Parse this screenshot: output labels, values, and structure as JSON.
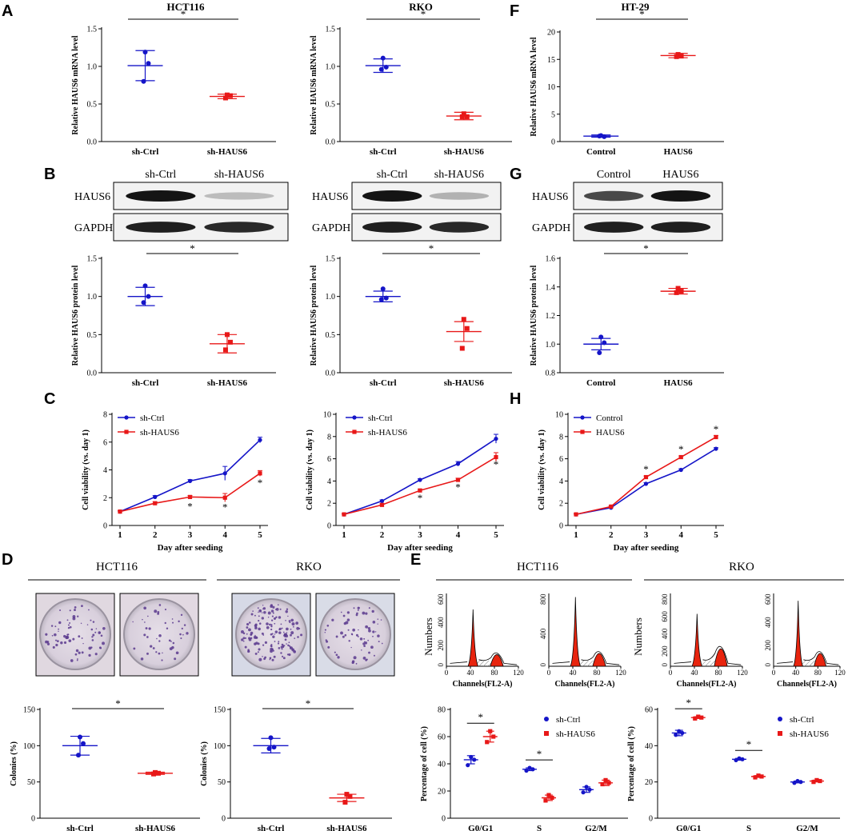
{
  "colors": {
    "blue": "#1515c8",
    "red": "#e81818",
    "black": "#000000"
  },
  "panel_letters": [
    "A",
    "B",
    "C",
    "D",
    "E",
    "F",
    "G",
    "H"
  ],
  "significance_mark": "*",
  "chart_data": [
    {
      "id": "A1",
      "type": "scatter",
      "title": "HCT116",
      "ylabel": "Relative HAUS6 mRNA level",
      "ylim": [
        0,
        1.5
      ],
      "yticks": [
        "0.0",
        "0.5",
        "1.0",
        "1.5"
      ],
      "categories": [
        "sh-Ctrl",
        "sh-HAUS6"
      ],
      "colors": [
        "blue",
        "red"
      ],
      "markers": [
        "circle",
        "square"
      ],
      "points": [
        [
          1.19,
          1.04,
          0.8
        ],
        [
          0.62,
          0.61,
          0.58
        ]
      ],
      "mean": [
        1.01,
        0.6
      ],
      "sd": [
        0.2,
        0.03
      ],
      "sig_label": "*"
    },
    {
      "id": "A2",
      "type": "scatter",
      "title": "RKO",
      "ylabel": "Relative HAUS6 mRNA level",
      "ylim": [
        0,
        1.5
      ],
      "yticks": [
        "0.0",
        "0.5",
        "1.0",
        "1.5"
      ],
      "categories": [
        "sh-Ctrl",
        "sh-HAUS6"
      ],
      "colors": [
        "blue",
        "red"
      ],
      "markers": [
        "circle",
        "square"
      ],
      "points": [
        [
          1.11,
          0.99,
          0.96
        ],
        [
          0.37,
          0.33,
          0.33
        ]
      ],
      "mean": [
        1.01,
        0.34
      ],
      "sd": [
        0.09,
        0.05
      ],
      "sig_label": "*"
    },
    {
      "id": "F",
      "type": "scatter",
      "title": "HT-29",
      "ylabel": "Relative HAUS6 mRNA level",
      "ylim": [
        0,
        20
      ],
      "yticks": [
        "0",
        "5",
        "10",
        "15",
        "20"
      ],
      "categories": [
        "Control",
        "HAUS6"
      ],
      "colors": [
        "blue",
        "red"
      ],
      "markers": [
        "circle",
        "square"
      ],
      "points": [
        [
          1.1,
          0.9,
          1.0
        ],
        [
          15.9,
          15.6,
          15.5
        ]
      ],
      "mean": [
        1.0,
        15.7
      ],
      "sd": [
        0.2,
        0.4
      ],
      "sig_label": "*"
    },
    {
      "id": "B1",
      "type": "scatter",
      "ylabel": "Relative HAUS6 protein level",
      "ylim": [
        0,
        1.5
      ],
      "yticks": [
        "0.0",
        "0.5",
        "1.0",
        "1.5"
      ],
      "categories": [
        "sh-Ctrl",
        "sh-HAUS6"
      ],
      "colors": [
        "blue",
        "red"
      ],
      "markers": [
        "circle",
        "square"
      ],
      "points": [
        [
          1.14,
          1.0,
          0.92
        ],
        [
          0.5,
          0.4,
          0.3
        ]
      ],
      "mean": [
        1.0,
        0.38
      ],
      "sd": [
        0.12,
        0.12
      ],
      "sig_label": "*"
    },
    {
      "id": "B2",
      "type": "scatter",
      "ylabel": "Relative HAUS6 protein level",
      "ylim": [
        0,
        1.5
      ],
      "yticks": [
        "0.0",
        "0.5",
        "1.0",
        "1.5"
      ],
      "categories": [
        "sh-Ctrl",
        "sh-HAUS6"
      ],
      "colors": [
        "blue",
        "red"
      ],
      "markers": [
        "circle",
        "square"
      ],
      "points": [
        [
          1.1,
          0.98,
          0.96
        ],
        [
          0.7,
          0.58,
          0.32
        ]
      ],
      "mean": [
        1.0,
        0.54
      ],
      "sd": [
        0.07,
        0.13
      ],
      "sig_label": "*"
    },
    {
      "id": "G",
      "type": "scatter",
      "ylabel": "Relative HAUS6 protein level",
      "ylim": [
        0.8,
        1.6
      ],
      "yticks": [
        "0.8",
        "1.0",
        "1.2",
        "1.4",
        "1.6"
      ],
      "categories": [
        "Control",
        "HAUS6"
      ],
      "colors": [
        "blue",
        "red"
      ],
      "markers": [
        "circle",
        "square"
      ],
      "points": [
        [
          1.05,
          1.01,
          0.94
        ],
        [
          1.39,
          1.37,
          1.36
        ]
      ],
      "mean": [
        1.0,
        1.37
      ],
      "sd": [
        0.04,
        0.02
      ],
      "sig_label": "*"
    },
    {
      "id": "C1",
      "type": "line",
      "xlabel": "Day after seeding",
      "ylabel": "Cell viability (vs. day 1)",
      "x": [
        1,
        2,
        3,
        4,
        5
      ],
      "ylim": [
        0,
        8
      ],
      "yticks": [
        "0",
        "2",
        "4",
        "6",
        "8"
      ],
      "xticks": [
        "1",
        "2",
        "3",
        "4",
        "5"
      ],
      "series": [
        {
          "name": "sh-Ctrl",
          "color": "blue",
          "marker": "circle",
          "values": [
            1.0,
            2.05,
            3.2,
            3.75,
            6.15
          ],
          "err": [
            0.05,
            0.1,
            0.1,
            0.5,
            0.2
          ]
        },
        {
          "name": "sh-HAUS6",
          "color": "red",
          "marker": "square",
          "values": [
            1.0,
            1.6,
            2.05,
            2.0,
            3.75
          ],
          "err": [
            0.05,
            0.1,
            0.1,
            0.3,
            0.2
          ]
        }
      ],
      "sig_days": [
        3,
        4,
        5
      ],
      "sig_label": "*"
    },
    {
      "id": "C2",
      "type": "line",
      "xlabel": "Day after seeding",
      "ylabel": "Cell viability (vs. day 1)",
      "x": [
        1,
        2,
        3,
        4,
        5
      ],
      "ylim": [
        0,
        10
      ],
      "yticks": [
        "0",
        "2",
        "4",
        "6",
        "8",
        "10"
      ],
      "xticks": [
        "1",
        "2",
        "3",
        "4",
        "5"
      ],
      "series": [
        {
          "name": "sh-Ctrl",
          "color": "blue",
          "marker": "circle",
          "values": [
            1.0,
            2.2,
            4.1,
            5.55,
            7.8
          ],
          "err": [
            0.05,
            0.1,
            0.1,
            0.2,
            0.4
          ]
        },
        {
          "name": "sh-HAUS6",
          "color": "red",
          "marker": "square",
          "values": [
            1.0,
            1.85,
            3.15,
            4.1,
            6.15
          ],
          "err": [
            0.05,
            0.1,
            0.1,
            0.15,
            0.4
          ]
        }
      ],
      "sig_days": [
        3,
        4,
        5
      ],
      "sig_label": "*"
    },
    {
      "id": "H",
      "type": "line",
      "xlabel": "Day after seeding",
      "ylabel": "Cell viability (vs. day 1)",
      "x": [
        1,
        2,
        3,
        4,
        5
      ],
      "ylim": [
        0,
        10
      ],
      "yticks": [
        "0",
        "2",
        "4",
        "6",
        "8",
        "10"
      ],
      "xticks": [
        "1",
        "2",
        "3",
        "4",
        "5"
      ],
      "series": [
        {
          "name": "Control",
          "color": "blue",
          "marker": "circle",
          "values": [
            1.0,
            1.6,
            3.75,
            5.0,
            6.9
          ],
          "err": [
            0.05,
            0.05,
            0.1,
            0.1,
            0.1
          ]
        },
        {
          "name": "HAUS6",
          "color": "red",
          "marker": "square",
          "values": [
            1.0,
            1.7,
            4.35,
            6.15,
            7.95
          ],
          "err": [
            0.05,
            0.05,
            0.1,
            0.1,
            0.15
          ]
        }
      ],
      "sig_days": [
        3,
        4,
        5
      ],
      "sig_label": "*"
    },
    {
      "id": "D1",
      "type": "scatter",
      "ylabel": "Colonies (%)",
      "ylim": [
        0,
        150
      ],
      "yticks": [
        "0",
        "50",
        "100",
        "150"
      ],
      "categories": [
        "sh-Ctrl",
        "sh-HAUS6"
      ],
      "colors": [
        "blue",
        "red"
      ],
      "markers": [
        "circle",
        "square"
      ],
      "points": [
        [
          112,
          103,
          87
        ],
        [
          63,
          62,
          61
        ]
      ],
      "mean": [
        100,
        62
      ],
      "sd": [
        13,
        1.5
      ],
      "sig_label": "*"
    },
    {
      "id": "D2",
      "type": "scatter",
      "ylabel": "Colonies (%)",
      "ylim": [
        0,
        150
      ],
      "yticks": [
        "0",
        "50",
        "100",
        "150"
      ],
      "categories": [
        "sh-Ctrl",
        "sh-HAUS6"
      ],
      "colors": [
        "blue",
        "red"
      ],
      "markers": [
        "circle",
        "square"
      ],
      "points": [
        [
          111,
          98,
          96
        ],
        [
          33,
          30,
          22
        ]
      ],
      "mean": [
        100,
        28
      ],
      "sd": [
        10,
        5
      ],
      "sig_label": "*"
    },
    {
      "id": "E1",
      "type": "scatter",
      "ylabel": "Percentage of cell (%)",
      "ylim": [
        0,
        80
      ],
      "yticks": [
        "0",
        "20",
        "40",
        "60",
        "80"
      ],
      "categories": [
        "G0/G1",
        "S",
        "G2/M"
      ],
      "legend": [
        "sh-Ctrl",
        "sh-HAUS6"
      ],
      "series": [
        {
          "name": "sh-Ctrl",
          "color": "blue",
          "marker": "circle",
          "points": [
            [
              45,
              43,
              39
            ],
            [
              37,
              36,
              35
            ],
            [
              23,
              21,
              19
            ]
          ],
          "mean": [
            43,
            36,
            21
          ],
          "sd": [
            3,
            1,
            2
          ]
        },
        {
          "name": "sh-HAUS6",
          "color": "red",
          "marker": "square",
          "points": [
            [
              64,
              60,
              56
            ],
            [
              17,
              15,
              13
            ],
            [
              28,
              26,
              25
            ]
          ],
          "mean": [
            60,
            15,
            26
          ],
          "sd": [
            4,
            2,
            2
          ]
        }
      ],
      "sig_groups": [
        0,
        1
      ],
      "sig_label": "*"
    },
    {
      "id": "E2",
      "type": "scatter",
      "ylabel": "Percentage of cell (%)",
      "ylim": [
        0,
        60
      ],
      "yticks": [
        "0",
        "20",
        "40",
        "60"
      ],
      "categories": [
        "G0/G1",
        "S",
        "G2/M"
      ],
      "legend": [
        "sh-Ctrl",
        "sh-HAUS6"
      ],
      "series": [
        {
          "name": "sh-Ctrl",
          "color": "blue",
          "marker": "circle",
          "points": [
            [
              48,
              47,
              46
            ],
            [
              33,
              32.5,
              32
            ],
            [
              20.5,
              20,
              19.5
            ]
          ],
          "mean": [
            47,
            32.5,
            20
          ],
          "sd": [
            1.5,
            0.5,
            0.5
          ]
        },
        {
          "name": "sh-HAUS6",
          "color": "red",
          "marker": "square",
          "points": [
            [
              56,
              55.5,
              55
            ],
            [
              23.5,
              23,
              22.5
            ],
            [
              21,
              20.5,
              20
            ]
          ],
          "mean": [
            55.5,
            23,
            20.5
          ],
          "sd": [
            0.5,
            0.5,
            0.5
          ]
        }
      ],
      "sig_groups": [
        0,
        1
      ],
      "sig_label": "*"
    }
  ],
  "western_blots": [
    {
      "id": "B1",
      "lanes": [
        "sh-Ctrl",
        "sh-HAUS6"
      ],
      "rows": [
        "HAUS6",
        "GAPDH"
      ]
    },
    {
      "id": "B2",
      "lanes": [
        "sh-Ctrl",
        "sh-HAUS6"
      ],
      "rows": [
        "HAUS6",
        "GAPDH"
      ]
    },
    {
      "id": "G",
      "lanes": [
        "Control",
        "HAUS6"
      ],
      "rows": [
        "HAUS6",
        "GAPDH"
      ]
    }
  ],
  "colony_assay": {
    "groups": [
      "HCT116",
      "RKO"
    ]
  },
  "flow_cytometry": {
    "groups": [
      "HCT116",
      "RKO"
    ],
    "ylabel": "Numbers",
    "xlabel": "Channels(FL2-A)",
    "xticks": [
      "0",
      "40",
      "80",
      "120"
    ],
    "histograms": [
      {
        "yticks": [
          "0",
          "200",
          "400",
          "600"
        ]
      },
      {
        "yticks": [
          "0",
          "400",
          "800"
        ]
      },
      {
        "yticks": [
          "0",
          "200",
          "400",
          "600",
          "800"
        ]
      },
      {
        "yticks": [
          "0",
          "200",
          "400",
          "600"
        ]
      }
    ]
  }
}
